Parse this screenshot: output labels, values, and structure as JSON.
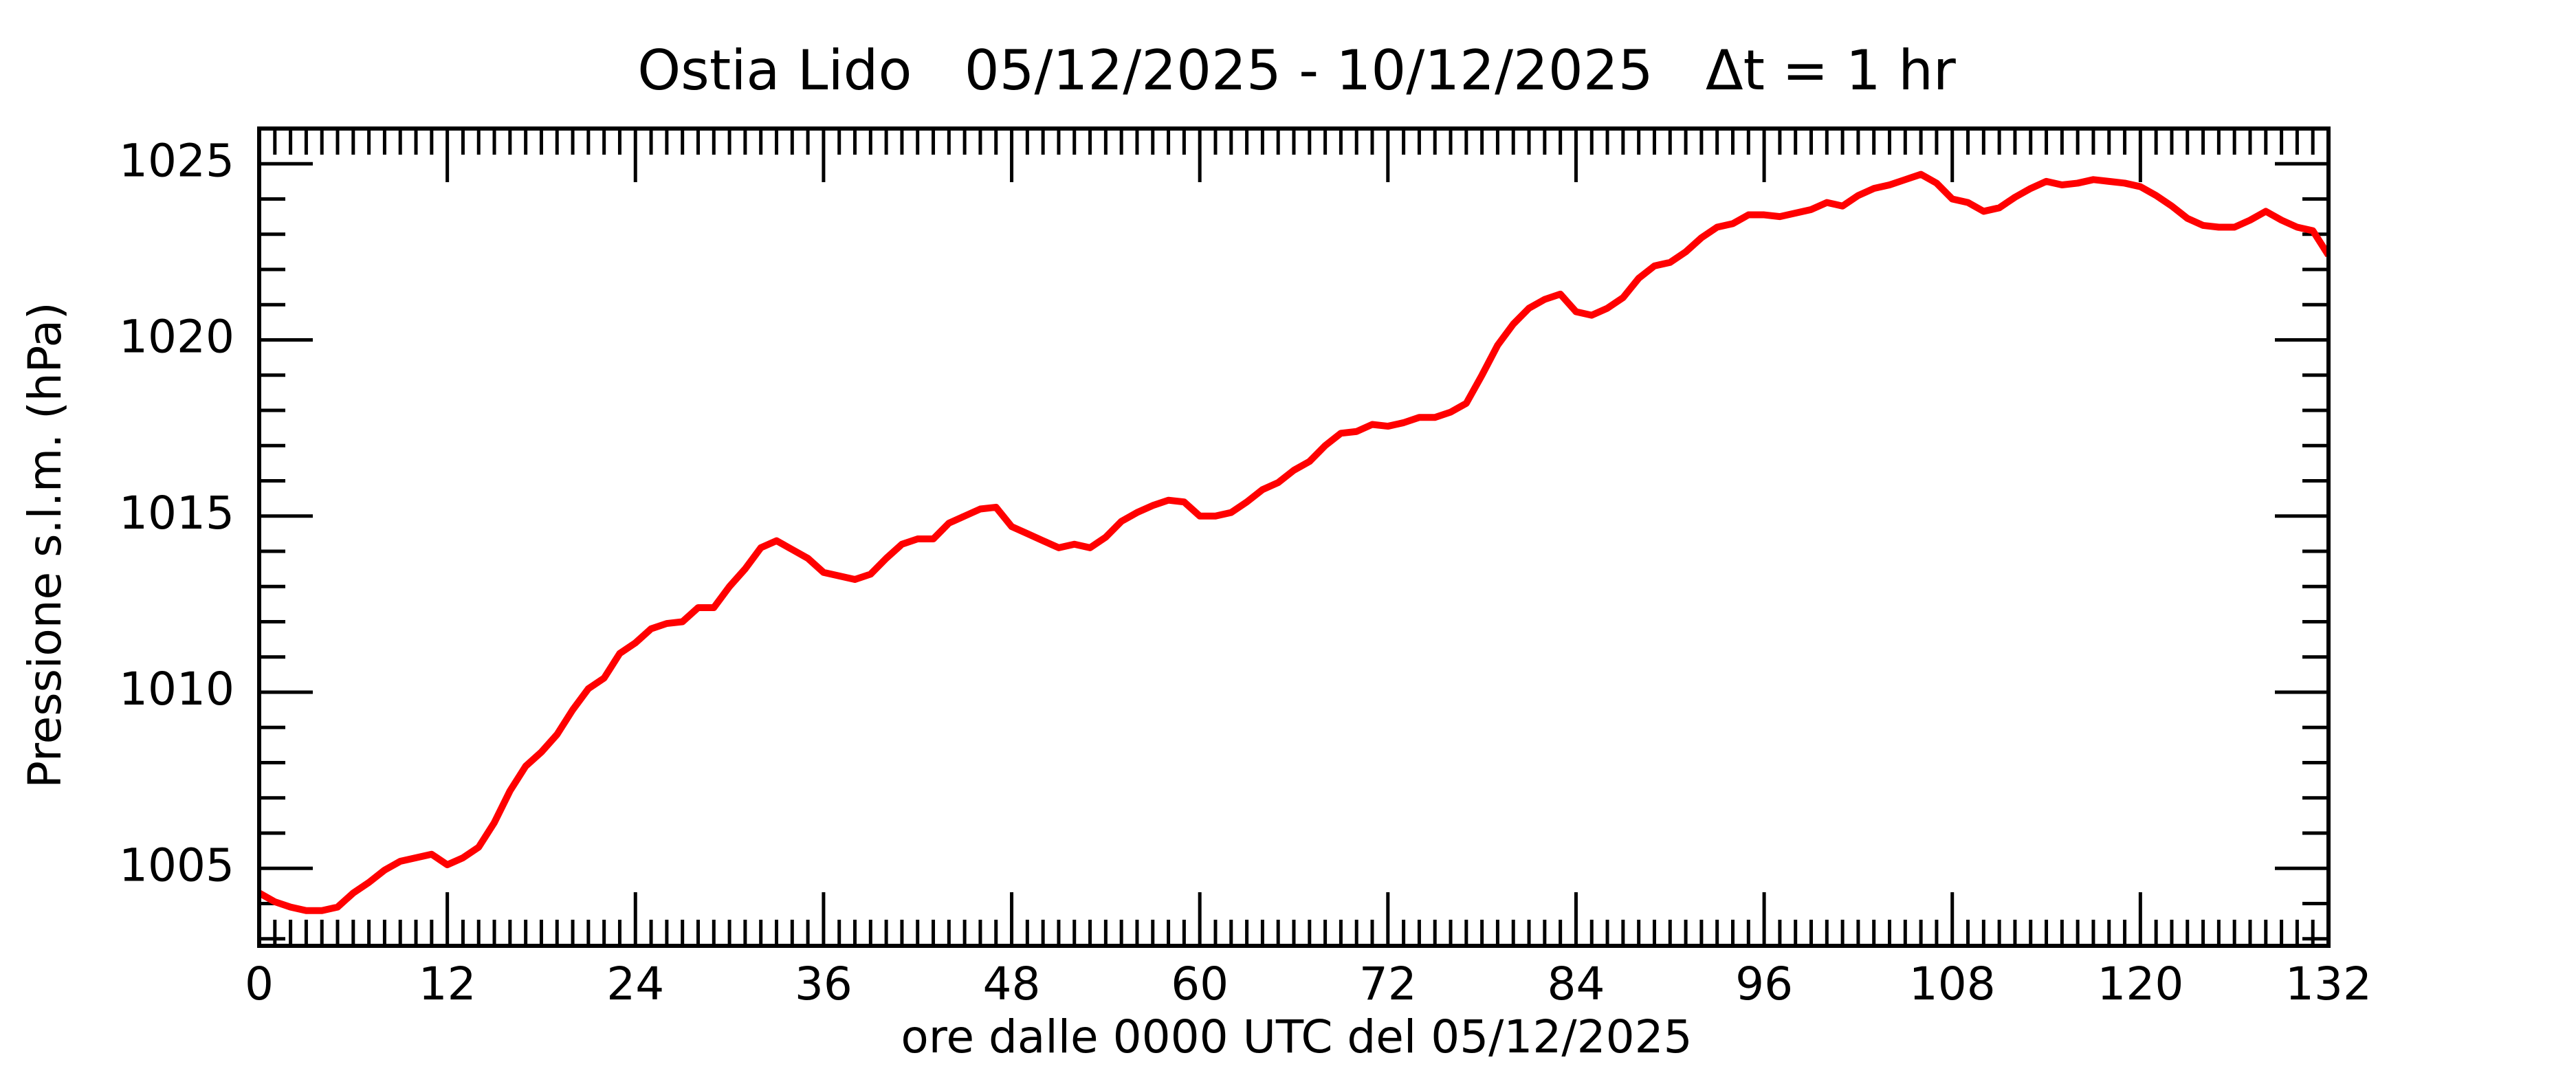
{
  "chart_data": {
    "type": "line",
    "title": "Ostia Lido   05/12/2025 - 10/12/2025   Δt = 1 hr",
    "x_label": "ore dalle 0000 UTC del 05/12/2025",
    "y_label": "Pressione s.l.m. (hPa)",
    "x": [
      0,
      1,
      2,
      3,
      4,
      5,
      6,
      7,
      8,
      9,
      10,
      11,
      12,
      13,
      14,
      15,
      16,
      17,
      18,
      19,
      20,
      21,
      22,
      23,
      24,
      25,
      26,
      27,
      28,
      29,
      30,
      31,
      32,
      33,
      34,
      35,
      36,
      37,
      38,
      39,
      40,
      41,
      42,
      43,
      44,
      45,
      46,
      47,
      48,
      49,
      50,
      51,
      52,
      53,
      54,
      55,
      56,
      57,
      58,
      59,
      60,
      61,
      62,
      63,
      64,
      65,
      66,
      67,
      68,
      69,
      70,
      71,
      72,
      73,
      74,
      75,
      76,
      77,
      78,
      79,
      80,
      81,
      82,
      83,
      84,
      85,
      86,
      87,
      88,
      89,
      90,
      91,
      92,
      93,
      94,
      95,
      96,
      97,
      98,
      99,
      100,
      101,
      102,
      103,
      104,
      105,
      106,
      107,
      108,
      109,
      110,
      111,
      112,
      113,
      114,
      115,
      116,
      117,
      118,
      119,
      120,
      121,
      122,
      123,
      124,
      125,
      126,
      127,
      128,
      129,
      130,
      131,
      132
    ],
    "series": [
      {
        "color": "#ff0000",
        "values": [
          1004.3,
          1004.05,
          1003.9,
          1003.8,
          1003.8,
          1003.9,
          1004.3,
          1004.6,
          1004.95,
          1005.2,
          1005.3,
          1005.4,
          1005.1,
          1005.3,
          1005.6,
          1006.3,
          1007.2,
          1007.9,
          1008.3,
          1008.8,
          1009.5,
          1010.1,
          1010.4,
          1011.1,
          1011.4,
          1011.8,
          1011.95,
          1012.0,
          1012.4,
          1012.4,
          1013.0,
          1013.5,
          1014.1,
          1014.3,
          1014.05,
          1013.8,
          1013.4,
          1013.3,
          1013.2,
          1013.35,
          1013.8,
          1014.2,
          1014.35,
          1014.35,
          1014.8,
          1015.0,
          1015.2,
          1015.25,
          1014.7,
          1014.5,
          1014.3,
          1014.1,
          1014.2,
          1014.1,
          1014.4,
          1014.85,
          1015.1,
          1015.3,
          1015.45,
          1015.4,
          1015.0,
          1015.0,
          1015.1,
          1015.4,
          1015.75,
          1015.95,
          1016.3,
          1016.55,
          1017.0,
          1017.35,
          1017.4,
          1017.6,
          1017.55,
          1017.65,
          1017.8,
          1017.8,
          1017.95,
          1018.2,
          1019.0,
          1019.85,
          1020.45,
          1020.9,
          1021.15,
          1021.3,
          1020.8,
          1020.7,
          1020.9,
          1021.2,
          1021.75,
          1022.1,
          1022.2,
          1022.5,
          1022.9,
          1023.2,
          1023.3,
          1023.55,
          1023.55,
          1023.5,
          1023.6,
          1023.7,
          1023.9,
          1023.8,
          1024.1,
          1024.3,
          1024.4,
          1024.55,
          1024.7,
          1024.45,
          1024.0,
          1023.9,
          1023.65,
          1023.75,
          1024.05,
          1024.3,
          1024.5,
          1024.4,
          1024.45,
          1024.55,
          1024.5,
          1024.45,
          1024.35,
          1024.1,
          1023.8,
          1023.45,
          1023.25,
          1023.2,
          1023.2,
          1023.4,
          1023.65,
          1023.4,
          1023.2,
          1023.1,
          1022.4
        ]
      }
    ],
    "xlim": [
      0,
      132
    ],
    "ylim": [
      1002.8,
      1026.0
    ],
    "xticks": [
      0,
      12,
      24,
      36,
      48,
      60,
      72,
      84,
      96,
      108,
      120,
      132
    ],
    "yticks": [
      1005,
      1010,
      1015,
      1020,
      1025
    ],
    "xminorticks": [
      1,
      2,
      3,
      4,
      5,
      6,
      7,
      8,
      9,
      10,
      11,
      13,
      14,
      15,
      16,
      17,
      18,
      19,
      20,
      21,
      22,
      23,
      25,
      26,
      27,
      28,
      29,
      30,
      31,
      32,
      33,
      34,
      35,
      37,
      38,
      39,
      40,
      41,
      42,
      43,
      44,
      45,
      46,
      47,
      49,
      50,
      51,
      52,
      53,
      54,
      55,
      56,
      57,
      58,
      59,
      61,
      62,
      63,
      64,
      65,
      66,
      67,
      68,
      69,
      70,
      71,
      73,
      74,
      75,
      76,
      77,
      78,
      79,
      80,
      81,
      82,
      83,
      85,
      86,
      87,
      88,
      89,
      90,
      91,
      92,
      93,
      94,
      95,
      97,
      98,
      99,
      100,
      101,
      102,
      103,
      104,
      105,
      106,
      107,
      109,
      110,
      111,
      112,
      113,
      114,
      115,
      116,
      117,
      118,
      119,
      121,
      122,
      123,
      124,
      125,
      126,
      127,
      128,
      129,
      130,
      131
    ],
    "yminorticks": [
      1003,
      1004,
      1006,
      1007,
      1008,
      1009,
      1011,
      1012,
      1013,
      1014,
      1016,
      1017,
      1018,
      1019,
      1021,
      1022,
      1023,
      1024,
      1026
    ]
  }
}
